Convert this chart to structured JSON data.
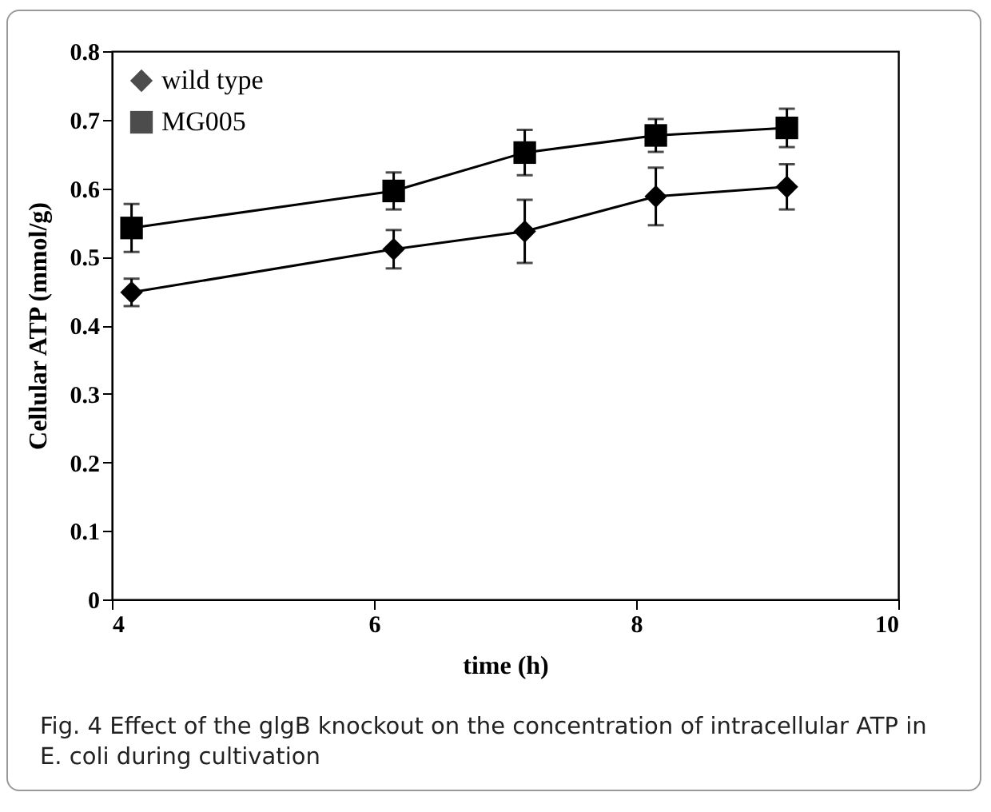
{
  "chart_data": {
    "type": "line",
    "xlabel": "time (h)",
    "ylabel": "Cellular ATP (mmol/g)",
    "x": [
      4.15,
      6.15,
      7.15,
      8.15,
      9.15
    ],
    "series": [
      {
        "name": "wild type",
        "color": "#000000",
        "marker": "diamond",
        "values": [
          0.448,
          0.511,
          0.537,
          0.588,
          0.602
        ],
        "errors": [
          0.02,
          0.028,
          0.046,
          0.042,
          0.033
        ]
      },
      {
        "name": "MG005",
        "color": "#000000",
        "marker": "square",
        "values": [
          0.542,
          0.596,
          0.652,
          0.677,
          0.688
        ],
        "errors": [
          0.035,
          0.027,
          0.033,
          0.024,
          0.028
        ]
      }
    ],
    "xlim": [
      4,
      10
    ],
    "xticks": [
      4,
      6,
      8,
      10
    ],
    "ylim": [
      0,
      0.8
    ],
    "yticks": [
      0,
      0.1,
      0.2,
      0.3,
      0.4,
      0.5,
      0.6,
      0.7,
      0.8
    ],
    "grid": false,
    "legend": "top left",
    "line_style": "solid",
    "annotations": [
      "Fig. 4 Effect of the glgB knockout on the concentration of intracellular ATP in E. coli during cultivation"
    ]
  }
}
